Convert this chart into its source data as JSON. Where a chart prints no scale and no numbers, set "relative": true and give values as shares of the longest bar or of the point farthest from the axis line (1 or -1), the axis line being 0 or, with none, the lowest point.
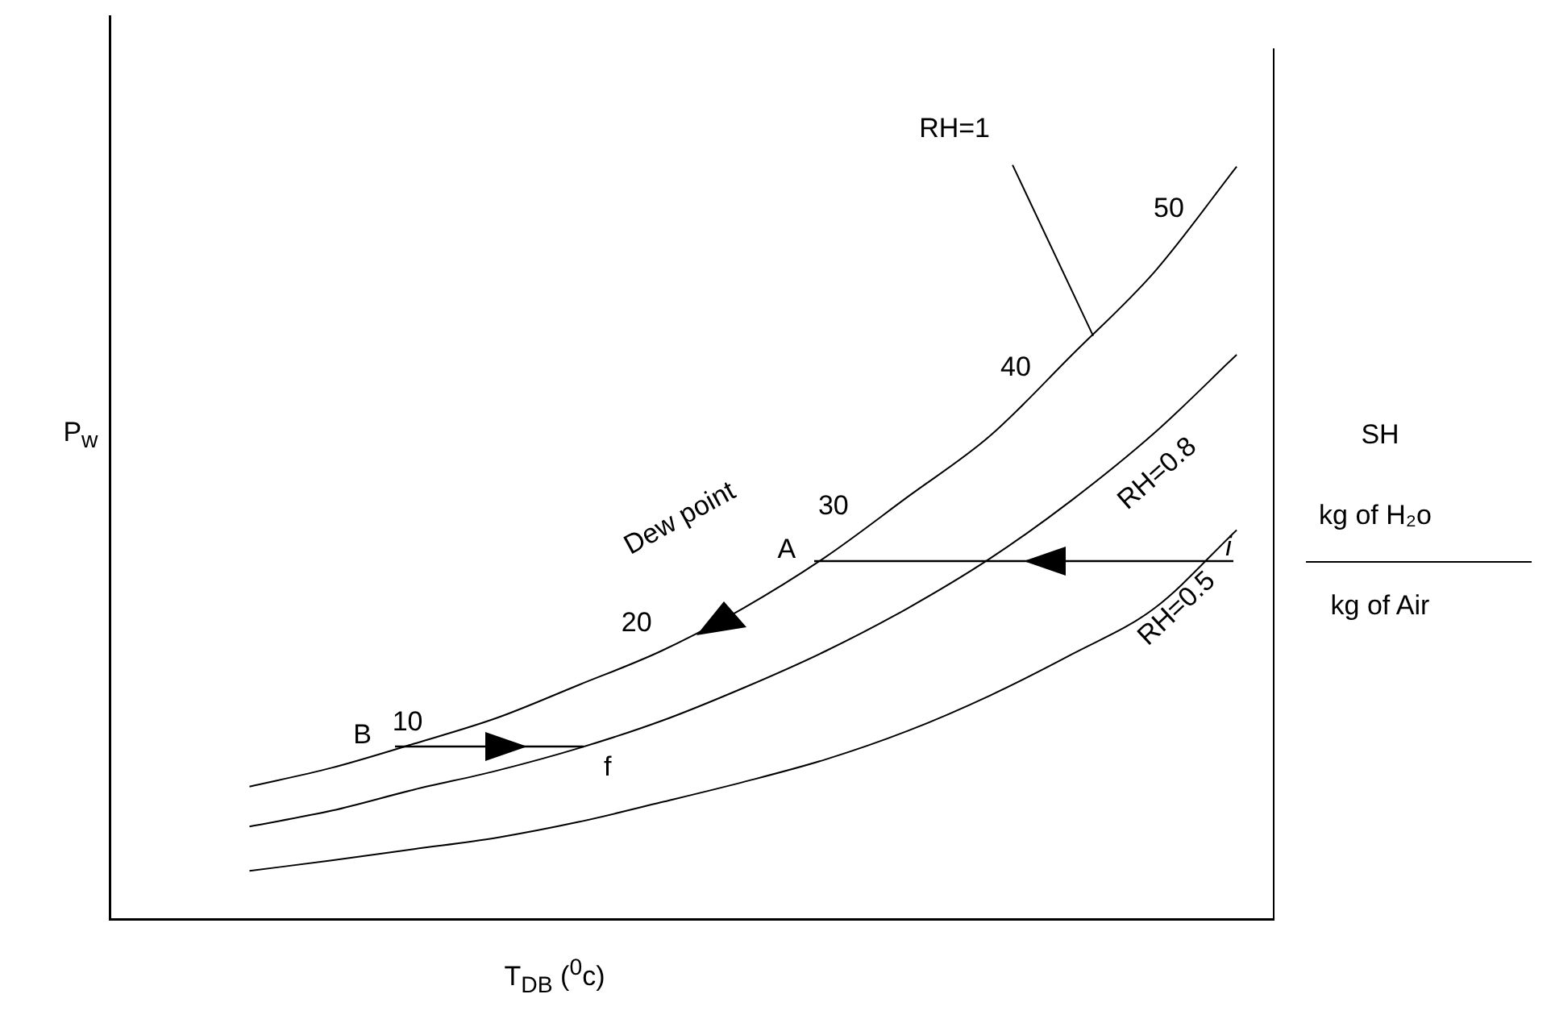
{
  "chart_data": {
    "type": "line",
    "relative": true,
    "grid": false,
    "legend": false,
    "xlabel": "T$_{DB}$ ($^{0}$c)",
    "ylabel": "P$_{w}$",
    "categories": [
      null,
      null,
      null,
      null,
      null,
      null,
      null,
      null,
      null,
      null,
      null,
      null,
      null
    ],
    "series": [
      {
        "name": "RH=1",
        "color": "#000000",
        "values": [
          0.176,
          0.201,
          0.233,
          0.267,
          0.311,
          0.356,
          0.413,
          0.481,
          0.561,
          0.642,
          0.75,
          0.86,
          1
        ]
      },
      {
        "name": "RH=0.8",
        "color": "#000000",
        "values": [
          0.123,
          0.144,
          0.172,
          0.197,
          0.227,
          0.263,
          0.307,
          0.356,
          0.413,
          0.479,
          0.557,
          0.646,
          0.75
        ]
      },
      {
        "name": "RH=0.5",
        "color": "#000000",
        "values": [
          0.064,
          0.078,
          0.093,
          0.108,
          0.129,
          0.155,
          0.182,
          0.212,
          0.25,
          0.297,
          0.352,
          0.413,
          0.517
        ]
      }
    ],
    "annotations": [
      "Dew point",
      "A",
      "B",
      "i",
      "f",
      "10",
      "20",
      "30",
      "40",
      "50",
      "SH",
      "kg of H₂o",
      "kg of Air"
    ]
  }
}
